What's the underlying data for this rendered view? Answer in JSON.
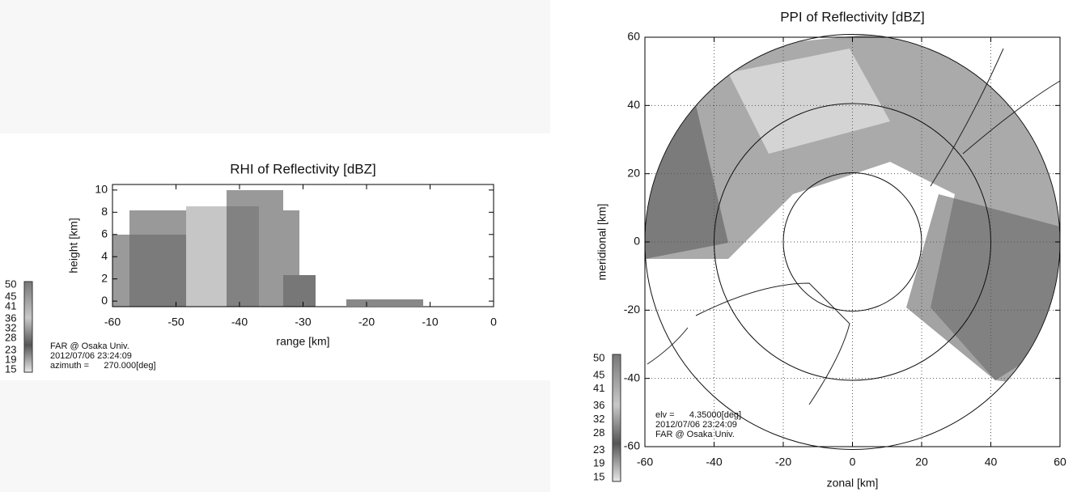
{
  "chart_data": [
    {
      "type": "rhi",
      "title": "RHI of Reflectivity [dBZ]",
      "xlabel": "range [km]",
      "ylabel": "height [km]",
      "xlim": [
        -60,
        0
      ],
      "ylim": [
        -0.5,
        10.5
      ],
      "xticks": [
        -60,
        -50,
        -40,
        -30,
        -20,
        -10,
        0
      ],
      "yticks": [
        0,
        2,
        4,
        6,
        8,
        10
      ],
      "grid": false,
      "clim": [
        15,
        50
      ],
      "colorbar_ticks": [
        15,
        19,
        23,
        28,
        32,
        36,
        41,
        45,
        50
      ],
      "annotations": [
        "FAR @ Osaka Univ.",
        "2012/07/06 23:24:09",
        "azimuth =      270.000[deg]"
      ]
    },
    {
      "type": "ppi",
      "title": "PPI of Reflectivity [dBZ]",
      "xlabel": "zonal [km]",
      "ylabel": "meridional [km]",
      "xlim": [
        -60,
        60
      ],
      "ylim": [
        -60,
        60
      ],
      "xticks": [
        -60,
        -40,
        -20,
        0,
        20,
        40,
        60
      ],
      "yticks": [
        -60,
        -40,
        -20,
        0,
        20,
        40,
        60
      ],
      "grid": true,
      "range_rings": [
        20,
        40,
        60
      ],
      "clim": [
        15,
        50
      ],
      "colorbar_ticks": [
        15,
        19,
        23,
        28,
        32,
        36,
        41,
        45,
        50
      ],
      "annotations": [
        "elv =      4.35000[deg]",
        "2012/07/06 23:24:09",
        "FAR @ Osaka Univ."
      ]
    }
  ]
}
